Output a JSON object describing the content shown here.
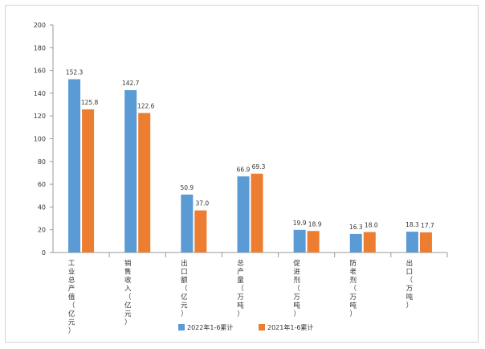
{
  "chart_data": {
    "type": "bar",
    "categories": [
      "工业总产值（亿元）",
      "销售收入（亿元）",
      "出口额（亿元）",
      "总产量（万吨）",
      "促进剂（万吨）",
      "防老剂（万吨）",
      "出口（万吨）"
    ],
    "series": [
      {
        "name": "2022年1-6累计",
        "values": [
          152.3,
          142.7,
          50.9,
          66.9,
          19.9,
          16.3,
          18.3
        ],
        "labels": [
          "152.3",
          "142.7",
          "50.9",
          "66.9",
          "19.9",
          "16.3",
          "18.3"
        ],
        "color": "#5b9bd5"
      },
      {
        "name": "2021年1-6累计",
        "values": [
          125.8,
          122.6,
          37.0,
          69.3,
          18.9,
          18.0,
          17.7
        ],
        "labels": [
          "125.8",
          "122.6",
          "37.0",
          "69.3",
          "18.9",
          "18.0",
          "17.7"
        ],
        "color": "#ed7d31"
      }
    ],
    "yticks": [
      "0",
      "20",
      "40",
      "60",
      "80",
      "100",
      "120",
      "140",
      "160",
      "180",
      "200"
    ],
    "ylim": [
      0,
      200
    ],
    "legend_position": "bottom",
    "grid": false
  }
}
